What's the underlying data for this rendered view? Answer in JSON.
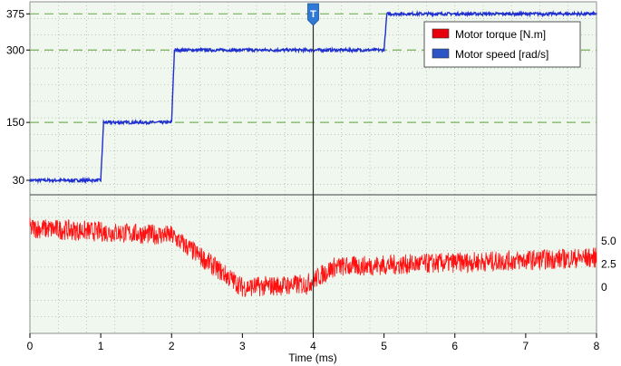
{
  "chart_data": {
    "type": "line",
    "xlabel": "Time (ms)",
    "xlim": [
      0,
      8
    ],
    "x_ticks": [
      0,
      1,
      2,
      3,
      4,
      5,
      6,
      7,
      8
    ],
    "grid": true,
    "cursor_marker": {
      "x": 4,
      "label": "T"
    },
    "legend": {
      "placement": "top-right",
      "entries": [
        {
          "label": "Motor torque [N.m]",
          "color": "#e8000c"
        },
        {
          "label": "Motor speed [rad/s]",
          "color": "#2b54c6"
        }
      ]
    },
    "panels": [
      {
        "name": "speed",
        "ylim": [
          0,
          400
        ],
        "y_ticks": [
          30,
          150,
          300,
          375
        ],
        "reference_lines": [
          150,
          300,
          375
        ],
        "series": [
          {
            "name": "Motor speed [rad/s]",
            "color": "#1f2fd0",
            "steps": [
              {
                "t": 0.0,
                "value": 30
              },
              {
                "t": 1.0,
                "value": 150
              },
              {
                "t": 2.0,
                "value": 300
              },
              {
                "t": 5.0,
                "value": 375
              }
            ],
            "noise": 3
          }
        ]
      },
      {
        "name": "torque",
        "ylim": [
          -5,
          10
        ],
        "y_ticks": [
          0,
          2.5,
          5.0
        ],
        "series": [
          {
            "name": "Motor torque [N.m]",
            "color": "#ff1010",
            "segments": [
              {
                "t": 0.0,
                "value": 6.4
              },
              {
                "t": 2.0,
                "value": 5.6
              },
              {
                "t": 3.0,
                "value": 0.0
              },
              {
                "t": 3.9,
                "value": 0.3
              },
              {
                "t": 4.3,
                "value": 2.2
              },
              {
                "t": 8.0,
                "value": 3.2
              }
            ],
            "noise": 1.1
          }
        ]
      }
    ]
  }
}
